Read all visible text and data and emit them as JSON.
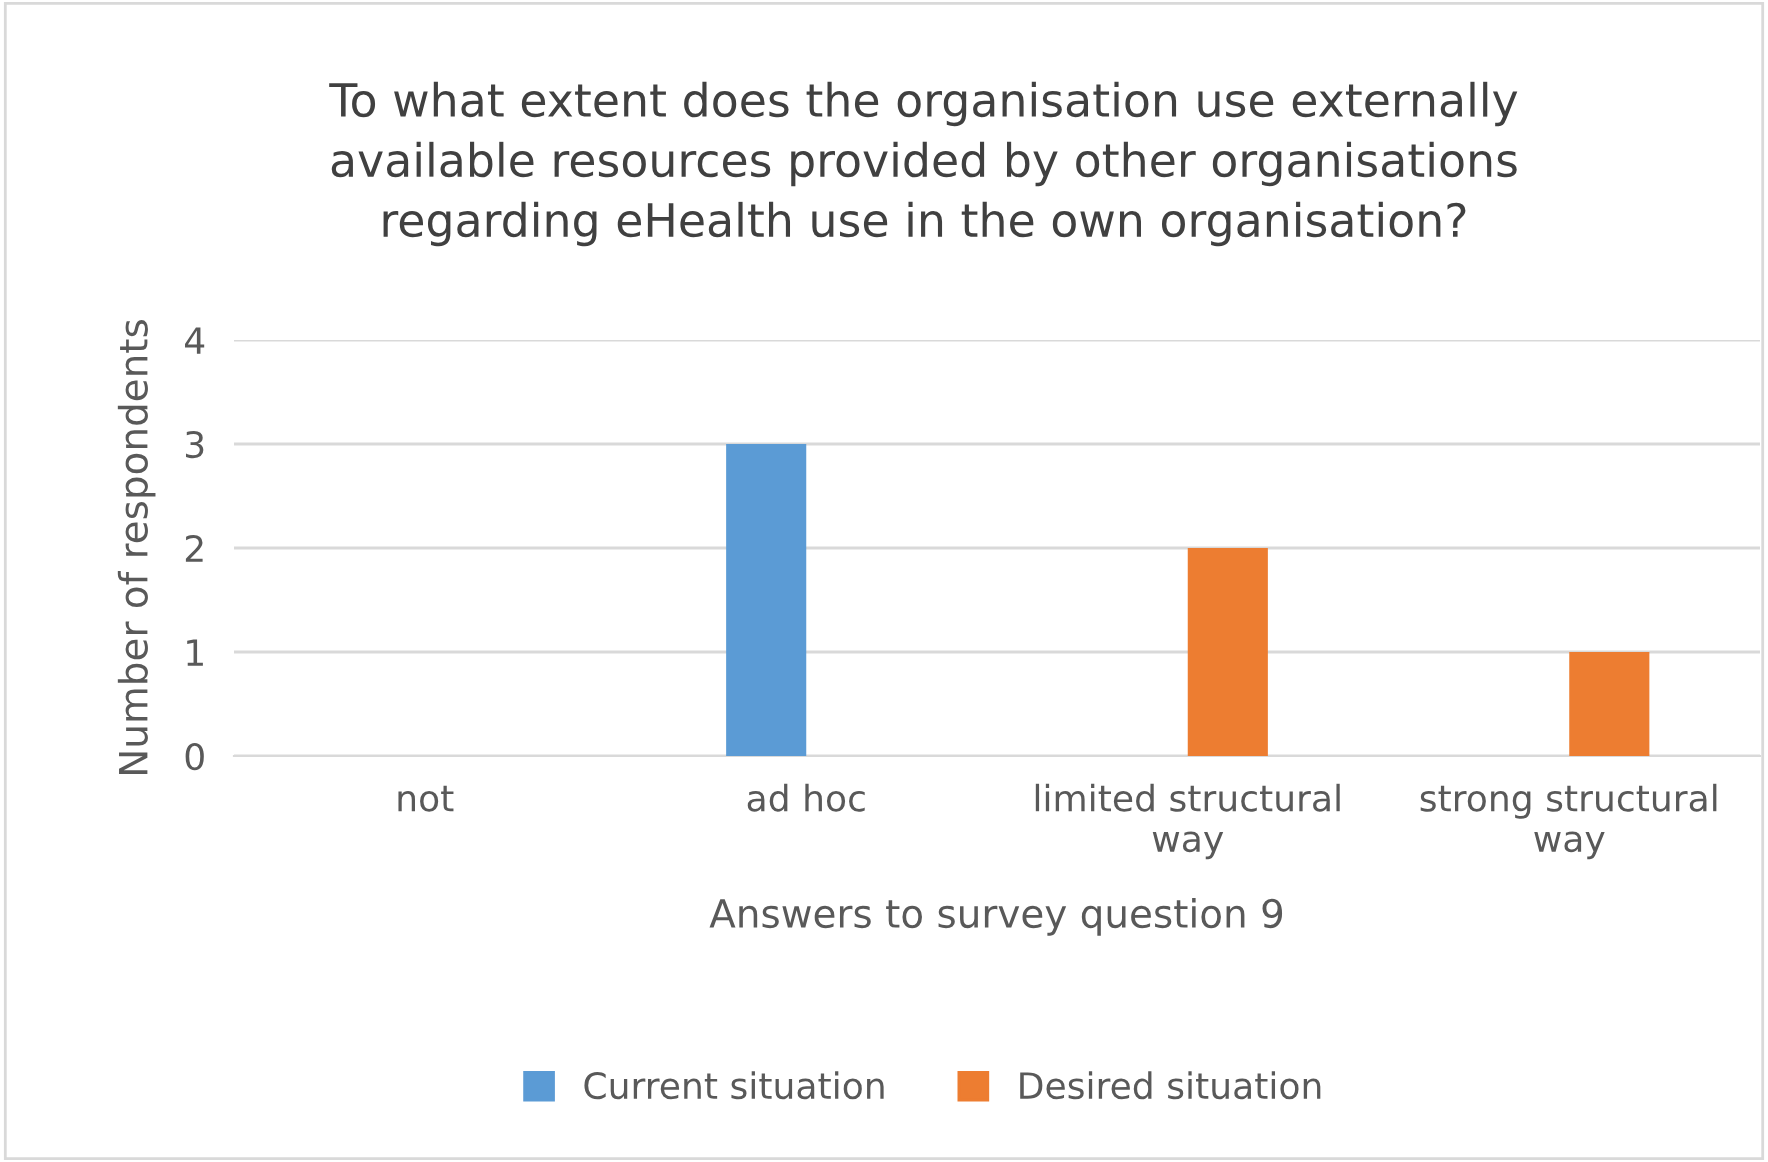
{
  "chart_data": {
    "type": "bar",
    "title": "To what extent does the organisation use externally\navailable resources provided by other organisations\nregarding eHealth use in the own organisation?",
    "xlabel": "Answers to survey question 9",
    "ylabel": "Number of respondents",
    "categories": [
      "not",
      "ad hoc",
      "limited structural\nway",
      "strong structural\nway"
    ],
    "series": [
      {
        "name": "Current situation",
        "color": "#5b9bd5",
        "values": [
          0,
          3,
          0,
          0
        ]
      },
      {
        "name": "Desired situation",
        "color": "#ed7d31",
        "values": [
          0,
          0,
          2,
          1
        ]
      }
    ],
    "ylim": [
      0,
      4
    ],
    "yticks": [
      0,
      1,
      2,
      3,
      4
    ],
    "grid": "y",
    "legend": "bottom"
  }
}
